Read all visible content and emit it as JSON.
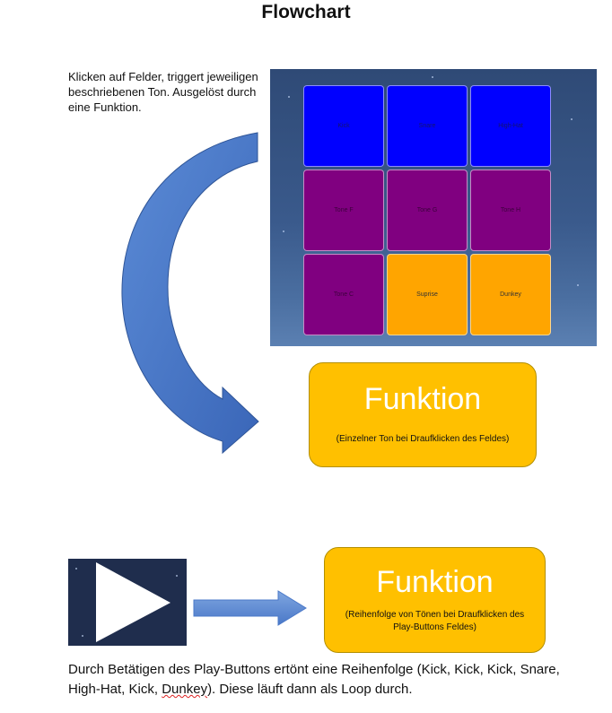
{
  "title": "Flowchart",
  "intro_text": "Klicken auf Felder, triggert jeweiligen beschriebenen Ton. Ausgelöst durch eine Funktion.",
  "pads": [
    {
      "label": "Kick",
      "color": "#0000ff"
    },
    {
      "label": "Snare",
      "color": "#0000ff"
    },
    {
      "label": "High-Hat",
      "color": "#0000ff"
    },
    {
      "label": "Tone F",
      "color": "#800080"
    },
    {
      "label": "Tone G",
      "color": "#800080"
    },
    {
      "label": "Tone H",
      "color": "#800080"
    },
    {
      "label": "Tone C",
      "color": "#800080"
    },
    {
      "label": "Suprise",
      "color": "#ffa500"
    },
    {
      "label": "Dunkey",
      "color": "#ffa500"
    }
  ],
  "function_1": {
    "title": "Funktion",
    "subtitle": "(Einzelner Ton bei Draufklicken des Feldes)"
  },
  "function_2": {
    "title": "Funktion",
    "subtitle": "(Reihenfolge von Tönen bei Draufklicken des Play-Buttons Feldes)"
  },
  "bottom_text": {
    "before": "Durch Betätigen des Play-Buttons ertönt eine Reihenfolge (Kick, Kick, Kick, Snare, High-Hat, Kick, ",
    "squiggle_word": "Dunkey",
    "after": "). Diese läuft dann als Loop durch."
  },
  "colors": {
    "function_box": "#ffc000",
    "arrow": "#4472c4"
  },
  "icons": {
    "play": "play-icon",
    "curved_arrow": "curved-arrow-icon",
    "right_arrow": "right-arrow-icon"
  }
}
